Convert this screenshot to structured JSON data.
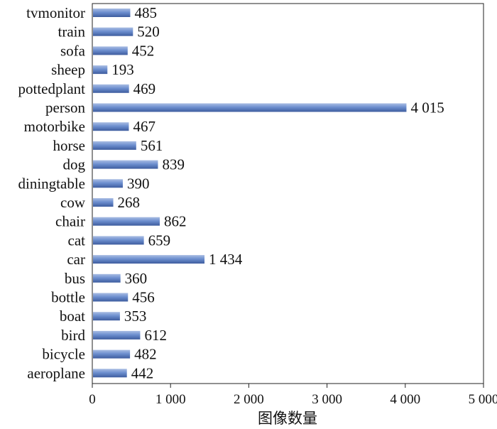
{
  "chart_data": {
    "type": "bar",
    "orientation": "horizontal",
    "categories": [
      "tvmonitor",
      "train",
      "sofa",
      "sheep",
      "pottedplant",
      "person",
      "motorbike",
      "horse",
      "dog",
      "diningtable",
      "cow",
      "chair",
      "cat",
      "car",
      "bus",
      "bottle",
      "boat",
      "bird",
      "bicycle",
      "aeroplane"
    ],
    "values": [
      485,
      520,
      452,
      193,
      469,
      4015,
      467,
      561,
      839,
      390,
      268,
      862,
      659,
      1434,
      360,
      456,
      353,
      612,
      482,
      442
    ],
    "value_labels": [
      "485",
      "520",
      "452",
      "193",
      "469",
      "4 015",
      "467",
      "561",
      "839",
      "390",
      "268",
      "862",
      "659",
      "1 434",
      "360",
      "456",
      "353",
      "612",
      "482",
      "442"
    ],
    "xlim": [
      0,
      5000
    ],
    "x_ticks": [
      0,
      1000,
      2000,
      3000,
      4000,
      5000
    ],
    "x_tick_labels": [
      "0",
      "1 000",
      "2 000",
      "3 000",
      "4 000",
      "5 000"
    ],
    "xlabel": "图像数量",
    "ylabel": "",
    "title": "",
    "grid": false,
    "bar_color": "#5b7fc0"
  }
}
